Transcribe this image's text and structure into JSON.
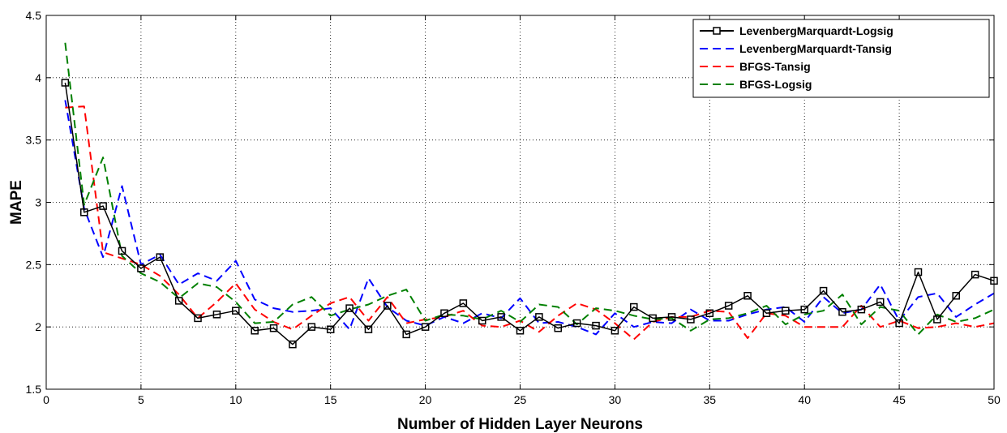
{
  "chart_data": {
    "type": "line",
    "title": "",
    "xlabel": "Number of Hidden Layer Neurons",
    "ylabel": "MAPE",
    "xlim": [
      0,
      50
    ],
    "ylim": [
      1.5,
      4.5
    ],
    "xticks": [
      0,
      5,
      10,
      15,
      20,
      25,
      30,
      35,
      40,
      45,
      50
    ],
    "yticks": [
      1.5,
      2,
      2.5,
      3,
      3.5,
      4,
      4.5
    ],
    "grid": true,
    "legend_position": "top-right",
    "x": [
      1,
      2,
      3,
      4,
      5,
      6,
      7,
      8,
      9,
      10,
      11,
      12,
      13,
      14,
      15,
      16,
      17,
      18,
      19,
      20,
      21,
      22,
      23,
      24,
      25,
      26,
      27,
      28,
      29,
      30,
      31,
      32,
      33,
      34,
      35,
      36,
      37,
      38,
      39,
      40,
      41,
      42,
      43,
      44,
      45,
      46,
      47,
      48,
      49,
      50
    ],
    "series": [
      {
        "name": "LevenbergMarquardt-Logsig",
        "color": "#000000",
        "style": "solid-square-markers",
        "values": [
          3.96,
          2.92,
          2.97,
          2.61,
          2.47,
          2.56,
          2.21,
          2.07,
          2.1,
          2.13,
          1.97,
          1.99,
          1.86,
          2.0,
          1.98,
          2.15,
          1.98,
          2.17,
          1.94,
          2.0,
          2.11,
          2.19,
          2.05,
          2.08,
          1.97,
          2.08,
          1.99,
          2.03,
          2.01,
          1.97,
          2.16,
          2.07,
          2.08,
          2.06,
          2.11,
          2.17,
          2.25,
          2.11,
          2.13,
          2.14,
          2.29,
          2.12,
          2.14,
          2.2,
          2.03,
          2.44,
          2.06,
          2.25,
          2.42,
          2.37
        ]
      },
      {
        "name": "LevenbergMarquardt-Tansig",
        "color": "#0000ff",
        "style": "dashed",
        "values": [
          3.82,
          2.95,
          2.56,
          3.13,
          2.5,
          2.58,
          2.34,
          2.43,
          2.37,
          2.53,
          2.22,
          2.15,
          2.12,
          2.13,
          2.15,
          1.98,
          2.39,
          2.16,
          2.05,
          2.01,
          2.08,
          2.03,
          2.11,
          2.07,
          2.23,
          2.03,
          2.04,
          2.0,
          1.94,
          2.11,
          2.0,
          2.04,
          2.03,
          2.14,
          2.05,
          2.05,
          2.1,
          2.14,
          2.16,
          2.04,
          2.24,
          2.11,
          2.14,
          2.34,
          2.05,
          2.24,
          2.27,
          2.08,
          2.18,
          2.27
        ]
      },
      {
        "name": "BFGS-Tansig",
        "color": "#ff0000",
        "style": "dashed",
        "values": [
          3.76,
          3.77,
          2.6,
          2.55,
          2.5,
          2.41,
          2.26,
          2.07,
          2.2,
          2.35,
          2.14,
          2.04,
          1.98,
          2.09,
          2.19,
          2.24,
          2.05,
          2.24,
          2.03,
          2.06,
          2.08,
          2.13,
          2.01,
          2.0,
          2.05,
          1.96,
          2.09,
          2.19,
          2.14,
          2.03,
          1.9,
          2.04,
          2.08,
          2.08,
          2.13,
          2.12,
          1.91,
          2.11,
          2.09,
          2.0,
          2.0,
          2.0,
          2.17,
          2.0,
          2.05,
          1.99,
          2.0,
          2.03,
          2.0,
          2.03
        ]
      },
      {
        "name": "BFGS-Logsig",
        "color": "#008000",
        "style": "dashed",
        "values": [
          4.28,
          2.98,
          3.36,
          2.57,
          2.43,
          2.36,
          2.23,
          2.35,
          2.32,
          2.2,
          2.03,
          2.04,
          2.18,
          2.24,
          2.09,
          2.14,
          2.18,
          2.25,
          2.3,
          2.05,
          2.1,
          2.09,
          2.06,
          2.13,
          2.04,
          2.18,
          2.16,
          2.02,
          2.15,
          2.13,
          2.09,
          2.06,
          2.07,
          1.97,
          2.06,
          2.07,
          2.11,
          2.17,
          2.02,
          2.1,
          2.13,
          2.26,
          2.02,
          2.16,
          2.13,
          1.94,
          2.1,
          2.04,
          2.07,
          2.14
        ]
      }
    ]
  }
}
